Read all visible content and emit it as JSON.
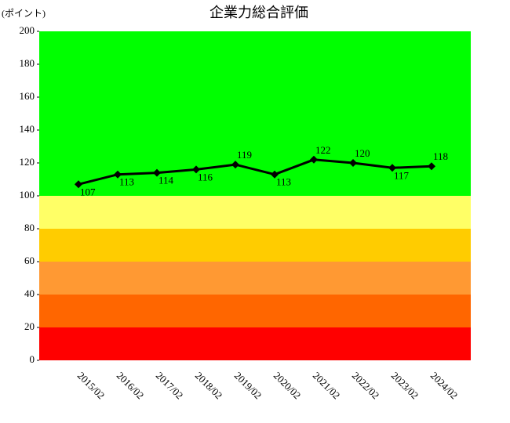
{
  "chart_data": {
    "type": "line",
    "title": "企業力総合評価",
    "y_label": "(ポイント)",
    "categories": [
      "2015/02",
      "2016/02",
      "2017/02",
      "2018/02",
      "2019/02",
      "2020/02",
      "2021/02",
      "2022/02",
      "2023/02",
      "2024/02"
    ],
    "values": [
      107,
      113,
      114,
      116,
      119,
      113,
      122,
      120,
      117,
      118
    ],
    "color": "#000000",
    "ylim": [
      0,
      200
    ],
    "yticks": [
      0,
      20,
      40,
      60,
      80,
      100,
      120,
      140,
      160,
      180,
      200
    ],
    "bands": [
      {
        "from": 0,
        "to": 20,
        "color": "#ff0000"
      },
      {
        "from": 20,
        "to": 40,
        "color": "#ff6600"
      },
      {
        "from": 40,
        "to": 60,
        "color": "#ff9933"
      },
      {
        "from": 60,
        "to": 80,
        "color": "#ffcc00"
      },
      {
        "from": 80,
        "to": 100,
        "color": "#ffff66"
      },
      {
        "from": 100,
        "to": 200,
        "color": "#00ff00"
      }
    ]
  }
}
